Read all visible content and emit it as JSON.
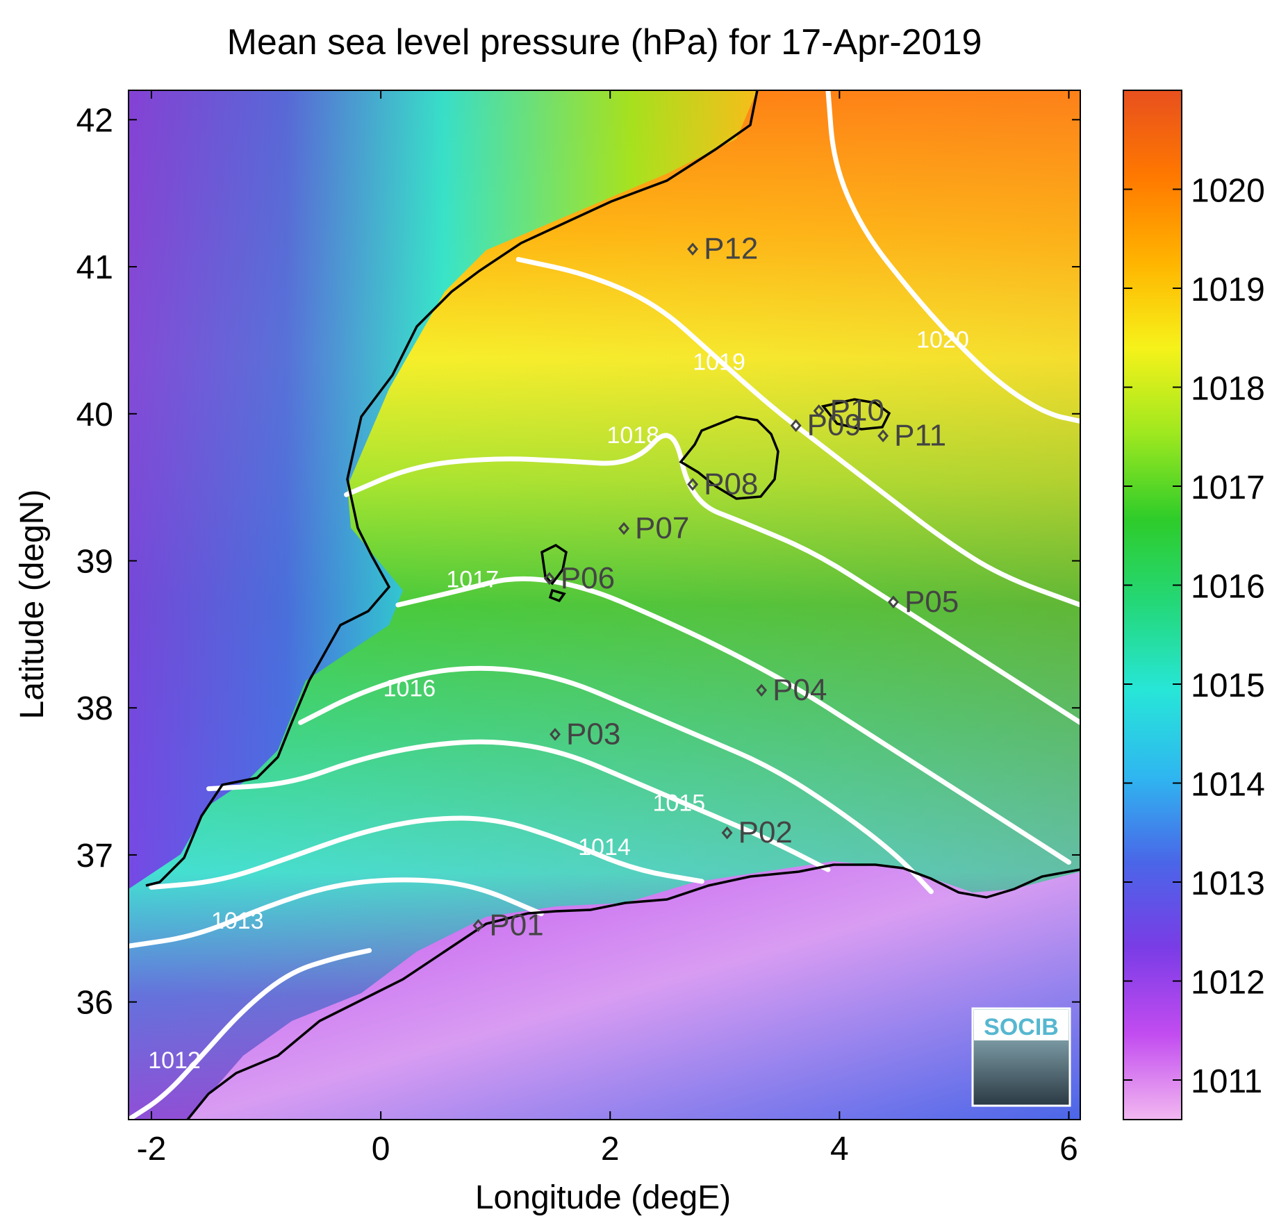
{
  "title": "Mean sea level pressure (hPa) for 17-Apr-2019",
  "xlabel": "Longitude (degE)",
  "ylabel": "Latitude (degN)",
  "logo_text": "SOCIB",
  "colors": {
    "coast": "#000000",
    "contour": "#ffffff",
    "marker": "#444444",
    "frame": "#000000"
  },
  "chart_data": {
    "type": "heatmap",
    "variable": "mean sea level pressure",
    "xlim": [
      -2.2,
      6.1
    ],
    "ylim": [
      35.2,
      42.2
    ],
    "xticks": [
      -2,
      0,
      2,
      4,
      6
    ],
    "xtick_labels": [
      "-2",
      "0",
      "2",
      "4",
      "6"
    ],
    "yticks": [
      36,
      37,
      38,
      39,
      40,
      41,
      42
    ],
    "ytick_labels": [
      "36",
      "37",
      "38",
      "39",
      "40",
      "41",
      "42"
    ],
    "colorbar": {
      "range": [
        1010.6,
        1021.0
      ],
      "ticks": [
        1011,
        1012,
        1013,
        1014,
        1015,
        1016,
        1017,
        1018,
        1019,
        1020
      ],
      "tick_labels": [
        "1011",
        "1012",
        "1013",
        "1014",
        "1015",
        "1016",
        "1017",
        "1018",
        "1019",
        "1020"
      ],
      "colormap": [
        "#f2b8f0",
        "#c24cf0",
        "#7a3ce6",
        "#4a66e8",
        "#2fb6f0",
        "#27e6d8",
        "#24d87a",
        "#2ecc2a",
        "#9fe81f",
        "#f6f21a",
        "#ffb400",
        "#ff7800",
        "#e8501e"
      ]
    },
    "stations": [
      {
        "name": "P01",
        "lon": 0.85,
        "lat": 36.52
      },
      {
        "name": "P02",
        "lon": 3.02,
        "lat": 37.15
      },
      {
        "name": "P03",
        "lon": 1.52,
        "lat": 37.82
      },
      {
        "name": "P04",
        "lon": 3.32,
        "lat": 38.12
      },
      {
        "name": "P05",
        "lon": 4.47,
        "lat": 38.72
      },
      {
        "name": "P06",
        "lon": 1.47,
        "lat": 38.88
      },
      {
        "name": "P07",
        "lon": 2.12,
        "lat": 39.22
      },
      {
        "name": "P08",
        "lon": 2.72,
        "lat": 39.52
      },
      {
        "name": "P09",
        "lon": 3.62,
        "lat": 39.92
      },
      {
        "name": "P10",
        "lon": 3.82,
        "lat": 40.02
      },
      {
        "name": "P11",
        "lon": 4.38,
        "lat": 39.85
      },
      {
        "name": "P12",
        "lon": 2.72,
        "lat": 41.12
      }
    ],
    "contours": [
      {
        "level": 1012,
        "label": "1012",
        "label_lon": -1.8,
        "label_lat": 35.55,
        "lon": [
          -2.2,
          -1.9,
          -1.6,
          -1.2,
          -0.8,
          -0.4,
          -0.1
        ],
        "lat": [
          35.2,
          35.35,
          35.6,
          35.95,
          36.2,
          36.3,
          36.35
        ]
      },
      {
        "level": 1013,
        "label": "1013",
        "label_lon": -1.25,
        "label_lat": 36.5,
        "lon": [
          -2.2,
          -1.6,
          -1.0,
          -0.4,
          0.2,
          0.8,
          1.4
        ],
        "lat": [
          36.38,
          36.45,
          36.65,
          36.8,
          36.84,
          36.8,
          36.6
        ]
      },
      {
        "level": 1014,
        "label": "1014",
        "label_lon": 1.95,
        "label_lat": 37.0,
        "lon": [
          -2.0,
          -1.4,
          -0.8,
          -0.2,
          0.4,
          1.0,
          1.6,
          2.2,
          2.8
        ],
        "lat": [
          36.78,
          36.82,
          36.98,
          37.15,
          37.25,
          37.25,
          37.1,
          36.9,
          36.82
        ]
      },
      {
        "level": 1015,
        "label": "1015",
        "label_lon": 2.6,
        "label_lat": 37.3,
        "lon": [
          -1.5,
          -0.8,
          -0.2,
          0.4,
          1.0,
          1.6,
          2.2,
          2.8,
          3.4,
          3.9
        ],
        "lat": [
          37.45,
          37.48,
          37.65,
          37.75,
          37.78,
          37.7,
          37.5,
          37.3,
          37.1,
          36.9
        ]
      },
      {
        "level": 1016,
        "label": "1016",
        "label_lon": 0.25,
        "label_lat": 38.08,
        "lon": [
          -0.7,
          -0.2,
          0.4,
          1.0,
          1.6,
          2.2,
          2.8,
          3.4,
          4.0,
          4.5,
          4.8
        ],
        "lat": [
          37.9,
          38.1,
          38.25,
          38.28,
          38.2,
          38.0,
          37.8,
          37.6,
          37.3,
          37.0,
          36.75
        ]
      },
      {
        "level": 1017,
        "label": "1017",
        "label_lon": 0.8,
        "label_lat": 38.82,
        "lon": [
          0.15,
          0.7,
          1.2,
          1.8,
          2.4,
          3.0,
          3.6,
          4.2,
          4.8,
          5.4,
          6.0
        ],
        "lat": [
          38.7,
          38.8,
          38.9,
          38.82,
          38.62,
          38.4,
          38.15,
          37.85,
          37.55,
          37.25,
          36.95
        ]
      },
      {
        "level": 1018,
        "label": "1018",
        "label_lon": 2.2,
        "label_lat": 39.8,
        "lon": [
          -0.3,
          0.3,
          1.0,
          1.6,
          2.2,
          2.55,
          2.7,
          3.2,
          3.8,
          4.4,
          5.0,
          5.6,
          6.1
        ],
        "lat": [
          39.45,
          39.65,
          39.7,
          39.68,
          39.65,
          39.95,
          39.4,
          39.25,
          39.05,
          38.75,
          38.45,
          38.15,
          37.9
        ]
      },
      {
        "level": 1019,
        "label": "1019",
        "label_lon": 2.95,
        "label_lat": 40.3,
        "lon": [
          1.2,
          1.8,
          2.4,
          2.9,
          3.4,
          3.9,
          4.4,
          4.9,
          5.4,
          6.1
        ],
        "lat": [
          41.05,
          40.95,
          40.75,
          40.4,
          40.05,
          39.75,
          39.45,
          39.15,
          38.9,
          38.7
        ]
      },
      {
        "level": 1020,
        "label": "1020",
        "label_lon": 4.9,
        "label_lat": 40.45,
        "lon": [
          3.9,
          3.95,
          4.2,
          4.6,
          5.0,
          5.4,
          5.8,
          6.1
        ],
        "lat": [
          42.2,
          41.7,
          41.25,
          40.85,
          40.5,
          40.2,
          40.0,
          39.95
        ]
      }
    ]
  }
}
